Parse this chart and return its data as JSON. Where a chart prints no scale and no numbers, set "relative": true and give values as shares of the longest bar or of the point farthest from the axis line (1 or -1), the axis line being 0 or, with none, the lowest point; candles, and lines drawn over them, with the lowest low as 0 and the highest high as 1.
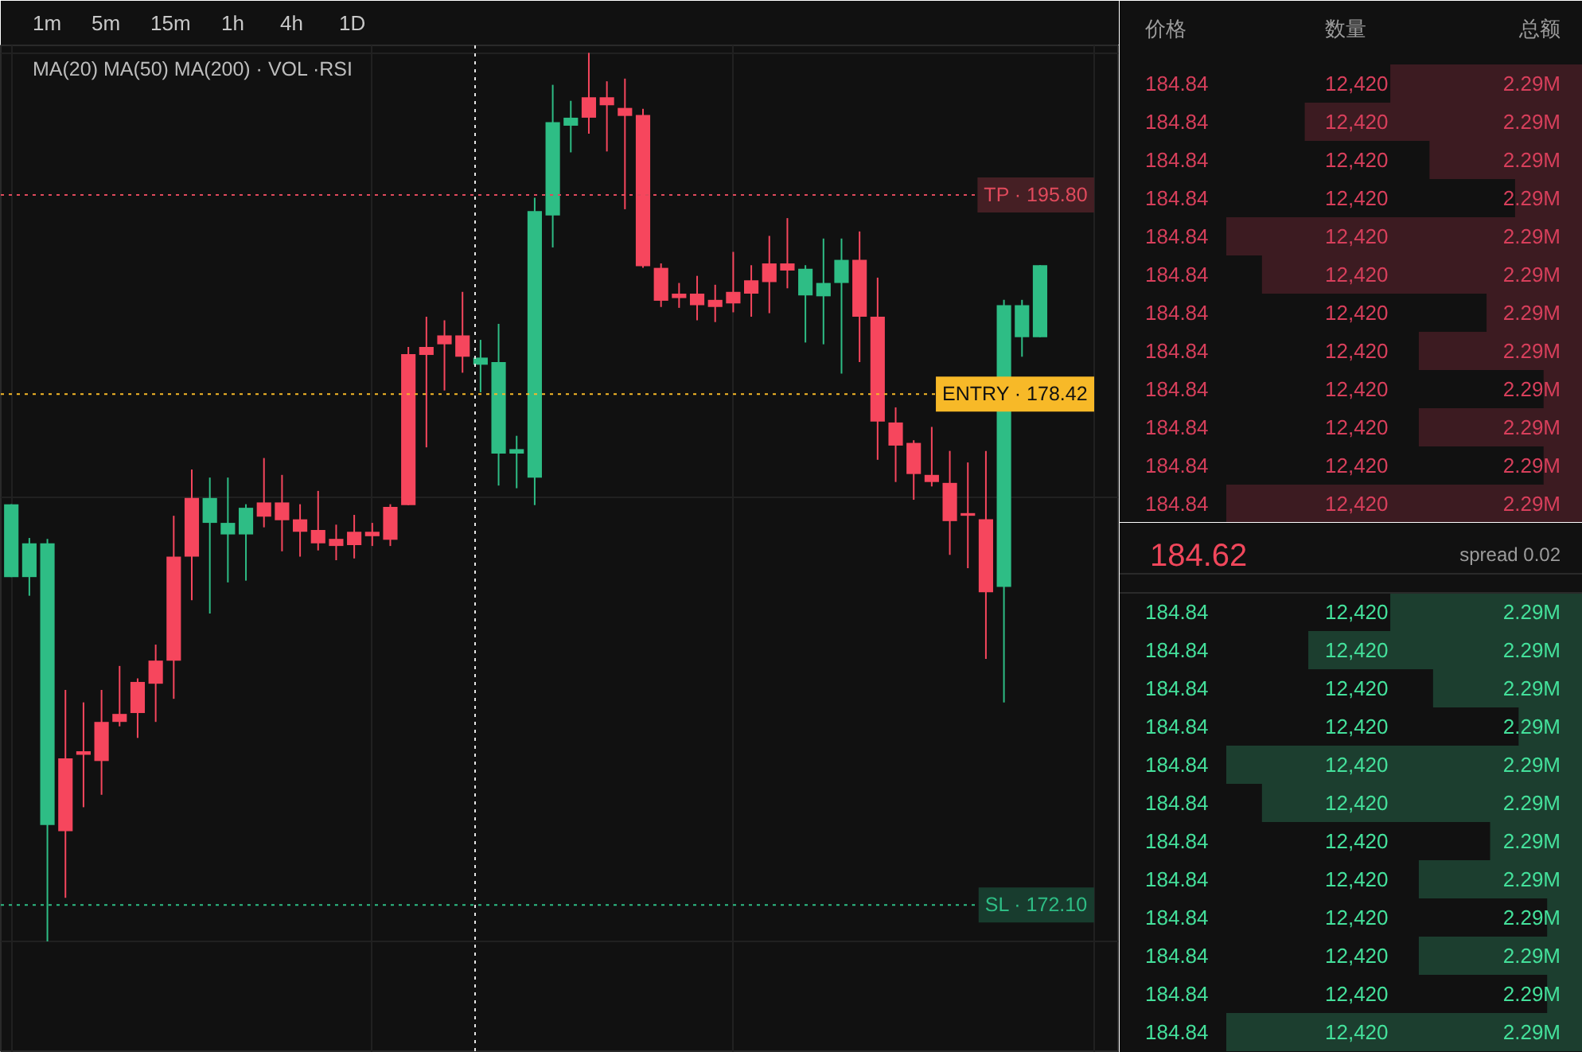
{
  "chart_data": [
    {
      "type": "candlestick",
      "relative": true,
      "subtitle": "MA(20) MA(50) MA(200) · VOL ·RSI",
      "annotations": [
        "1m",
        "5m",
        "15m",
        "1h",
        "4h",
        "1D"
      ],
      "grid": true,
      "categories": [
        null,
        null,
        null,
        null,
        null,
        null,
        null,
        null,
        null,
        null,
        null,
        null,
        null,
        null,
        null,
        null,
        null,
        null,
        null,
        null,
        null,
        null,
        null,
        null,
        null,
        null,
        null,
        null,
        null,
        null,
        null,
        null,
        null,
        null,
        null,
        null,
        null,
        null,
        null,
        null,
        null,
        null,
        null,
        null,
        null,
        null,
        null,
        null,
        null,
        null,
        null,
        null,
        null,
        null,
        null,
        null,
        null,
        null
      ],
      "ohlc": [
        [
          0.41,
          0.492,
          0.41,
          0.492
        ],
        [
          0.41,
          0.454,
          0.389,
          0.448
        ],
        [
          0.131,
          0.453,
          0.0,
          0.448
        ],
        [
          0.206,
          0.283,
          0.049,
          0.124
        ],
        [
          0.214,
          0.269,
          0.151,
          0.21
        ],
        [
          0.247,
          0.283,
          0.165,
          0.203
        ],
        [
          0.256,
          0.31,
          0.242,
          0.247
        ],
        [
          0.292,
          0.296,
          0.229,
          0.257
        ],
        [
          0.316,
          0.334,
          0.247,
          0.29
        ],
        [
          0.433,
          0.479,
          0.273,
          0.316
        ],
        [
          0.499,
          0.531,
          0.384,
          0.433
        ],
        [
          0.471,
          0.522,
          0.369,
          0.499
        ],
        [
          0.458,
          0.522,
          0.404,
          0.471
        ],
        [
          0.458,
          0.492,
          0.406,
          0.488
        ],
        [
          0.494,
          0.544,
          0.466,
          0.478
        ],
        [
          0.494,
          0.525,
          0.439,
          0.474
        ],
        [
          0.475,
          0.492,
          0.433,
          0.461
        ],
        [
          0.463,
          0.507,
          0.44,
          0.448
        ],
        [
          0.453,
          0.469,
          0.429,
          0.445
        ],
        [
          0.461,
          0.48,
          0.431,
          0.446
        ],
        [
          0.461,
          0.471,
          0.445,
          0.456
        ],
        [
          0.489,
          0.492,
          0.445,
          0.452
        ],
        [
          0.661,
          0.669,
          0.491,
          0.491
        ],
        [
          0.669,
          0.703,
          0.556,
          0.66
        ],
        [
          0.682,
          0.699,
          0.62,
          0.672
        ],
        [
          0.682,
          0.731,
          0.64,
          0.658
        ],
        [
          0.649,
          0.677,
          0.618,
          0.657
        ],
        [
          0.549,
          0.695,
          0.513,
          0.652
        ],
        [
          0.549,
          0.569,
          0.51,
          0.554
        ],
        [
          0.522,
          0.837,
          0.491,
          0.822
        ],
        [
          0.817,
          0.964,
          0.781,
          0.922
        ],
        [
          0.918,
          0.946,
          0.888,
          0.927
        ],
        [
          0.95,
          1.0,
          0.909,
          0.927
        ],
        [
          0.95,
          0.968,
          0.889,
          0.941
        ],
        [
          0.938,
          0.971,
          0.824,
          0.929
        ],
        [
          0.93,
          0.937,
          0.758,
          0.76
        ],
        [
          0.758,
          0.763,
          0.714,
          0.721
        ],
        [
          0.729,
          0.741,
          0.713,
          0.724
        ],
        [
          0.729,
          0.749,
          0.699,
          0.716
        ],
        [
          0.722,
          0.739,
          0.697,
          0.714
        ],
        [
          0.731,
          0.776,
          0.708,
          0.718
        ],
        [
          0.744,
          0.761,
          0.703,
          0.729
        ],
        [
          0.763,
          0.794,
          0.707,
          0.742
        ],
        [
          0.763,
          0.814,
          0.735,
          0.755
        ],
        [
          0.727,
          0.761,
          0.674,
          0.757
        ],
        [
          0.726,
          0.791,
          0.672,
          0.741
        ],
        [
          0.741,
          0.791,
          0.639,
          0.767
        ],
        [
          0.767,
          0.799,
          0.652,
          0.703
        ],
        [
          0.703,
          0.747,
          0.542,
          0.585
        ],
        [
          0.584,
          0.601,
          0.517,
          0.558
        ],
        [
          0.561,
          0.564,
          0.497,
          0.526
        ],
        [
          0.525,
          0.579,
          0.512,
          0.517
        ],
        [
          0.516,
          0.552,
          0.435,
          0.473
        ],
        [
          0.482,
          0.539,
          0.42,
          0.479
        ],
        [
          0.475,
          0.552,
          0.318,
          0.393
        ],
        [
          0.399,
          0.722,
          0.269,
          0.716
        ],
        [
          0.68,
          0.722,
          0.658,
          0.716
        ],
        [
          0.68,
          0.761,
          0.68,
          0.761
        ]
      ],
      "colors": [
        "#2ebd85",
        "#2ebd85",
        "#2ebd85",
        "#f6465d",
        "#f6465d",
        "#f6465d",
        "#f6465d",
        "#f6465d",
        "#f6465d",
        "#f6465d",
        "#f6465d",
        "#2ebd85",
        "#2ebd85",
        "#2ebd85",
        "#f6465d",
        "#f6465d",
        "#f6465d",
        "#f6465d",
        "#f6465d",
        "#f6465d",
        "#f6465d",
        "#f6465d",
        "#f6465d",
        "#f6465d",
        "#f6465d",
        "#f6465d",
        "#2ebd85",
        "#2ebd85",
        "#2ebd85",
        "#2ebd85",
        "#2ebd85",
        "#2ebd85",
        "#f6465d",
        "#f6465d",
        "#f6465d",
        "#f6465d",
        "#f6465d",
        "#f6465d",
        "#f6465d",
        "#f6465d",
        "#f6465d",
        "#f6465d",
        "#f6465d",
        "#f6465d",
        "#2ebd85",
        "#2ebd85",
        "#2ebd85",
        "#f6465d",
        "#f6465d",
        "#f6465d",
        "#f6465d",
        "#f6465d",
        "#f6465d",
        "#f6465d",
        "#f6465d",
        "#2ebd85",
        "#2ebd85",
        "#2ebd85"
      ],
      "ref_lines": [
        {
          "axis": "y",
          "value": 0.84,
          "label": "TP · 195.80",
          "color": "#e04a5c",
          "line_style": "dotted"
        },
        {
          "axis": "y",
          "value": 0.616,
          "label": "ENTRY · 178.42",
          "color": "#f7b928",
          "line_style": "dotted"
        },
        {
          "axis": "y",
          "value": 0.041,
          "label": "SL · 172.10",
          "color": "#2ebd85",
          "line_style": "dotted"
        }
      ]
    },
    {
      "type": "bar",
      "orientation": "horizontal",
      "relative": true,
      "ylabel": "价格",
      "xlabel": "数量",
      "y2label": "总额",
      "categories": [
        "184.84",
        "184.84",
        "184.84",
        "184.84",
        "184.84",
        "184.84",
        "184.84",
        "184.84",
        "184.84",
        "184.84",
        "184.84",
        "184.84"
      ],
      "y2_categories": [
        "2.29M",
        "2.29M",
        "2.29M",
        "2.29M",
        "2.29M",
        "2.29M",
        "2.29M",
        "2.29M",
        "2.29M",
        "2.29M",
        "2.29M",
        "2.29M"
      ],
      "annotations": [
        "12,420",
        "12,420",
        "12,420",
        "12,420",
        "12,420",
        "12,420",
        "12,420",
        "12,420",
        "12,420",
        "12,420",
        "12,420",
        "12,420"
      ],
      "series": [
        {
          "color": "#3c1b21",
          "values": [
            0.54,
            0.78,
            0.43,
            0.19,
            1,
            0.9,
            0.27,
            0.46,
            0.11,
            0.46,
            0.11,
            1
          ]
        }
      ]
    },
    {
      "type": "bar",
      "orientation": "horizontal",
      "relative": true,
      "title": "184.62",
      "subtitle": "spread 0.02",
      "categories": [
        "184.84",
        "184.84",
        "184.84",
        "184.84",
        "184.84",
        "184.84",
        "184.84",
        "184.84",
        "184.84",
        "184.84",
        "184.84",
        "184.84"
      ],
      "y2_categories": [
        "2.29M",
        "2.29M",
        "2.29M",
        "2.29M",
        "2.29M",
        "2.29M",
        "2.29M",
        "2.29M",
        "2.29M",
        "2.29M",
        "2.29M",
        "2.29M"
      ],
      "annotations": [
        "12,420",
        "12,420",
        "12,420",
        "12,420",
        "12,420",
        "12,420",
        "12,420",
        "12,420",
        "12,420",
        "12,420",
        "12,420",
        "12,420"
      ],
      "series": [
        {
          "color": "#1c3e2f",
          "values": [
            0.54,
            0.77,
            0.42,
            0.18,
            1,
            0.9,
            0.26,
            0.46,
            0.1,
            0.46,
            0.1,
            1
          ]
        }
      ]
    }
  ]
}
